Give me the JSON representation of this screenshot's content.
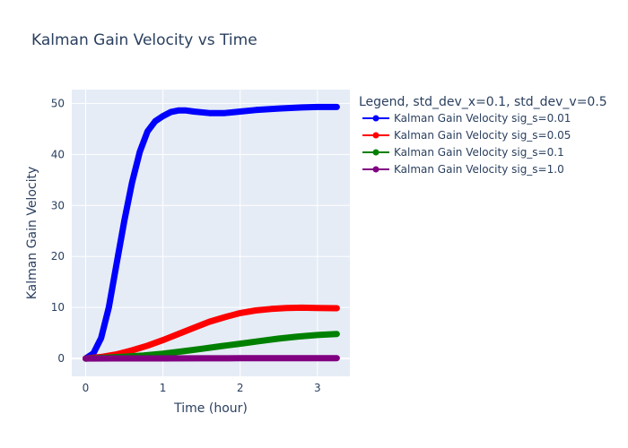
{
  "chart_data": {
    "type": "line",
    "title": "Kalman Gain Velocity vs Time",
    "xlabel": "Time (hour)",
    "ylabel": "Kalman Gain Velocity",
    "xlim": [
      -0.18,
      3.42
    ],
    "ylim": [
      -3.5,
      52.7
    ],
    "x_ticks": [
      0,
      1,
      2,
      3
    ],
    "y_ticks": [
      0,
      10,
      20,
      30,
      40,
      50
    ],
    "grid": true,
    "legend": {
      "title": "Legend, std_dev_x=0.1, std_dev_v=0.5",
      "position": "right"
    },
    "series": [
      {
        "name": "Kalman Gain Velocity sig_s=0.01",
        "color": "#0000ff",
        "x": [
          0,
          0.1,
          0.2,
          0.3,
          0.4,
          0.5,
          0.6,
          0.7,
          0.8,
          0.9,
          1.0,
          1.1,
          1.2,
          1.3,
          1.4,
          1.6,
          1.8,
          2.0,
          2.2,
          2.5,
          2.8,
          3.0,
          3.25
        ],
        "y": [
          0,
          1,
          4,
          10,
          18.5,
          27,
          34.5,
          40.5,
          44.5,
          46.5,
          47.5,
          48.3,
          48.6,
          48.6,
          48.4,
          48.1,
          48.1,
          48.4,
          48.7,
          49.0,
          49.2,
          49.3,
          49.3
        ]
      },
      {
        "name": "Kalman Gain Velocity sig_s=0.05",
        "color": "#ff0000",
        "x": [
          0,
          0.2,
          0.4,
          0.6,
          0.8,
          1.0,
          1.2,
          1.4,
          1.6,
          1.8,
          2.0,
          2.2,
          2.4,
          2.6,
          2.8,
          3.0,
          3.25
        ],
        "y": [
          0,
          0.3,
          0.8,
          1.6,
          2.5,
          3.6,
          4.8,
          6.0,
          7.2,
          8.1,
          8.9,
          9.4,
          9.7,
          9.9,
          9.95,
          9.9,
          9.85
        ]
      },
      {
        "name": "Kalman Gain Velocity sig_s=0.1",
        "color": "#008000",
        "x": [
          0,
          0.25,
          0.5,
          0.75,
          1.0,
          1.25,
          1.5,
          1.75,
          2.0,
          2.25,
          2.5,
          2.75,
          3.0,
          3.25
        ],
        "y": [
          0,
          0.15,
          0.35,
          0.6,
          0.95,
          1.4,
          1.9,
          2.4,
          2.9,
          3.4,
          3.9,
          4.3,
          4.6,
          4.8
        ]
      },
      {
        "name": "Kalman Gain Velocity sig_s=1.0",
        "color": "#800080",
        "x": [
          0,
          0.5,
          1.0,
          1.5,
          2.0,
          2.5,
          3.0,
          3.25
        ],
        "y": [
          0,
          0.01,
          0.02,
          0.03,
          0.04,
          0.05,
          0.06,
          0.06
        ]
      }
    ]
  }
}
